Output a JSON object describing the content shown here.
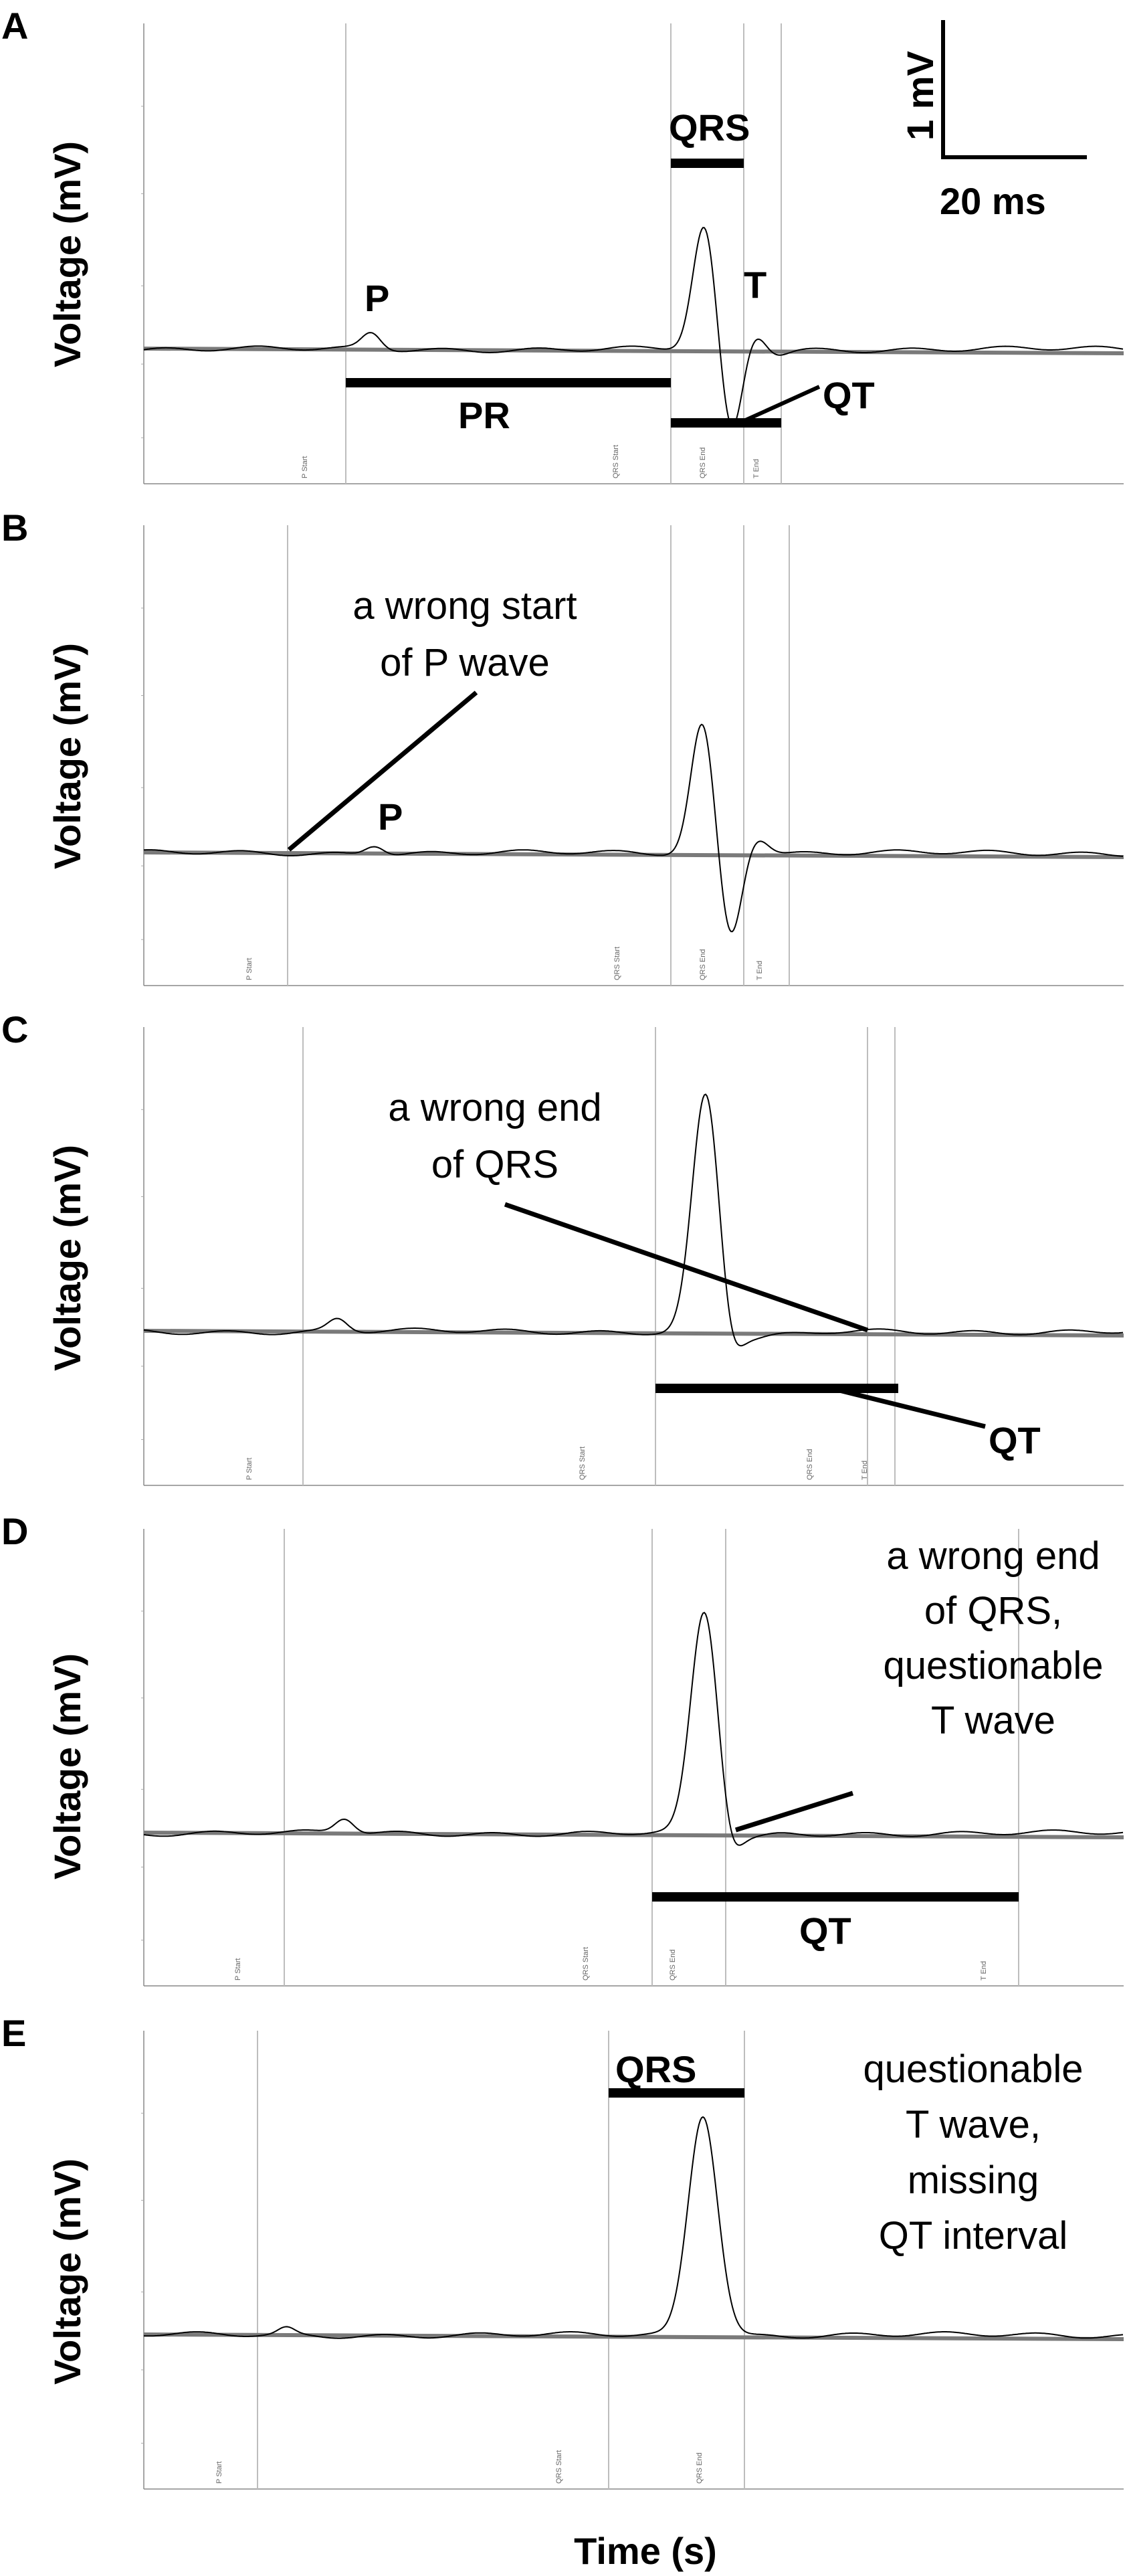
{
  "chart_data": [
    {
      "type": "line",
      "panel": "A",
      "ylabel": "Voltage (mV)",
      "markers": [
        "P Start",
        "QRS Start",
        "QRS End",
        "T End"
      ],
      "waves": [
        "P",
        "QRS",
        "T"
      ],
      "intervals": [
        "QRS",
        "PR",
        "QT"
      ],
      "scalebar": {
        "voltage": "1 mV",
        "time": "20 ms"
      }
    },
    {
      "type": "line",
      "panel": "B",
      "ylabel": "Voltage (mV)",
      "markers": [
        "P Start",
        "QRS Start",
        "QRS End",
        "T End"
      ],
      "annotation": [
        "a wrong start",
        "of P wave"
      ],
      "wave_label": "P"
    },
    {
      "type": "line",
      "panel": "C",
      "ylabel": "Voltage (mV)",
      "markers": [
        "P Start",
        "QRS Start",
        "QRS End",
        "T End"
      ],
      "annotation": [
        "a wrong end",
        "of QRS"
      ],
      "interval_label": "QT"
    },
    {
      "type": "line",
      "panel": "D",
      "ylabel": "Voltage (mV)",
      "markers": [
        "P Start",
        "QRS Start",
        "QRS End",
        "T End"
      ],
      "annotation": [
        "a wrong end",
        "of QRS,",
        "questionable",
        "T wave"
      ],
      "interval_label": "QT"
    },
    {
      "type": "line",
      "panel": "E",
      "ylabel": "Voltage (mV)",
      "xlabel": "Time (s)",
      "markers": [
        "P Start",
        "QRS Start",
        "QRS End"
      ],
      "annotation": [
        "questionable",
        "T wave,",
        "missing",
        "QT interval"
      ],
      "interval_label": "QRS"
    }
  ],
  "colors": {
    "trace": "#000000",
    "baseline": "#7a7a7a",
    "marker_line": "#bdbdbd"
  }
}
